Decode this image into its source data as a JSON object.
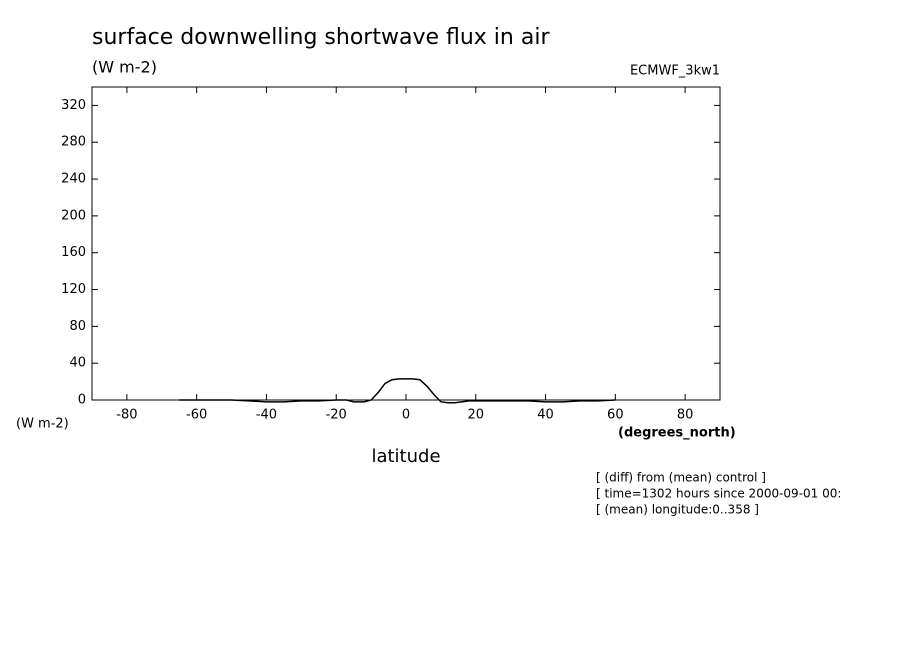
{
  "chart_data": {
    "type": "line",
    "title": "surface downwelling shortwave flux in air",
    "units": "(W m-2)",
    "dataset": "ECMWF_3kw1",
    "y_label": "(W m-2)",
    "x_units": "(degrees_north)",
    "x_label": "latitude",
    "notes": [
      "[ (diff) from (mean) control ]",
      "[ time=1302 hours since 2000-09-01 00:",
      "[ (mean) longitude:0..358 ]"
    ],
    "x": [
      -65,
      -60,
      -55,
      -50,
      -45,
      -40,
      -35,
      -30,
      -25,
      -20,
      -17,
      -15,
      -12,
      -10,
      -8,
      -6,
      -4,
      -2,
      0,
      2,
      4,
      6,
      8,
      10,
      12,
      14,
      16,
      18,
      20,
      25,
      30,
      35,
      40,
      45,
      50,
      55,
      60
    ],
    "series": [
      {
        "color": "#000000",
        "values": [
          0,
          0,
          0,
          0,
          -1,
          -2,
          -2,
          -1,
          -1,
          0,
          0,
          -2,
          -2,
          0,
          8,
          18,
          22,
          23,
          23,
          23,
          22,
          15,
          6,
          -2,
          -3,
          -3,
          -2,
          -1,
          -1,
          -1,
          -1,
          -1,
          -2,
          -2,
          -1,
          -1,
          0
        ]
      }
    ],
    "xlim": [
      -90,
      90
    ],
    "xticks": [
      -80,
      -60,
      -40,
      -20,
      0,
      20,
      40,
      60,
      80
    ],
    "ylim": [
      0,
      340
    ],
    "yticks": [
      0,
      40,
      80,
      120,
      160,
      200,
      240,
      280,
      320
    ]
  }
}
